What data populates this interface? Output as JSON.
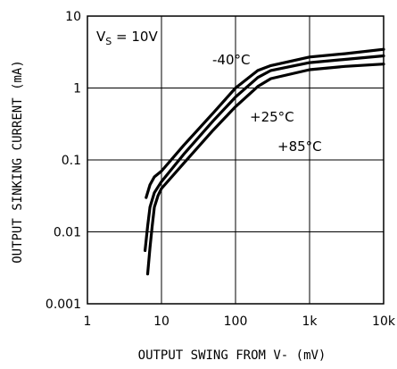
{
  "chart_data": {
    "type": "line",
    "title": "",
    "xlabel": "OUTPUT SWING FROM V- (mV)",
    "ylabel": "OUTPUT SINKING CURRENT (mA)",
    "xscale": "log",
    "yscale": "log",
    "xlim": [
      1,
      10000
    ],
    "ylim": [
      0.001,
      10
    ],
    "xticks": [
      {
        "value": 1,
        "label": "1"
      },
      {
        "value": 10,
        "label": "10"
      },
      {
        "value": 100,
        "label": "100"
      },
      {
        "value": 1000,
        "label": "1k"
      },
      {
        "value": 10000,
        "label": "10k"
      }
    ],
    "yticks": [
      {
        "value": 0.001,
        "label": "0.001"
      },
      {
        "value": 0.01,
        "label": "0.01"
      },
      {
        "value": 0.1,
        "label": "0.1"
      },
      {
        "value": 1,
        "label": "1"
      },
      {
        "value": 10,
        "label": "10"
      }
    ],
    "grid": true,
    "condition": {
      "prefix": "V",
      "sub": "S",
      "suffix": " = 10V"
    },
    "series": [
      {
        "name": "-40°C",
        "points": [
          [
            6.2,
            0.03
          ],
          [
            7,
            0.045
          ],
          [
            8,
            0.058
          ],
          [
            10,
            0.07
          ],
          [
            20,
            0.16
          ],
          [
            50,
            0.45
          ],
          [
            100,
            1.0
          ],
          [
            200,
            1.75
          ],
          [
            300,
            2.05
          ],
          [
            1000,
            2.7
          ],
          [
            3000,
            3.0
          ],
          [
            10000,
            3.45
          ]
        ]
      },
      {
        "name": "+25°C",
        "points": [
          [
            6.0,
            0.0055
          ],
          [
            6.5,
            0.012
          ],
          [
            7,
            0.022
          ],
          [
            8,
            0.035
          ],
          [
            10,
            0.05
          ],
          [
            20,
            0.12
          ],
          [
            50,
            0.35
          ],
          [
            100,
            0.75
          ],
          [
            200,
            1.4
          ],
          [
            300,
            1.75
          ],
          [
            1000,
            2.25
          ],
          [
            3000,
            2.5
          ],
          [
            10000,
            2.8
          ]
        ]
      },
      {
        "name": "+85°C",
        "points": [
          [
            6.5,
            0.0026
          ],
          [
            7,
            0.006
          ],
          [
            7.5,
            0.012
          ],
          [
            8,
            0.022
          ],
          [
            9,
            0.032
          ],
          [
            10,
            0.04
          ],
          [
            20,
            0.09
          ],
          [
            50,
            0.26
          ],
          [
            100,
            0.55
          ],
          [
            200,
            1.05
          ],
          [
            300,
            1.35
          ],
          [
            1000,
            1.8
          ],
          [
            3000,
            2.0
          ],
          [
            10000,
            2.15
          ]
        ]
      }
    ]
  }
}
